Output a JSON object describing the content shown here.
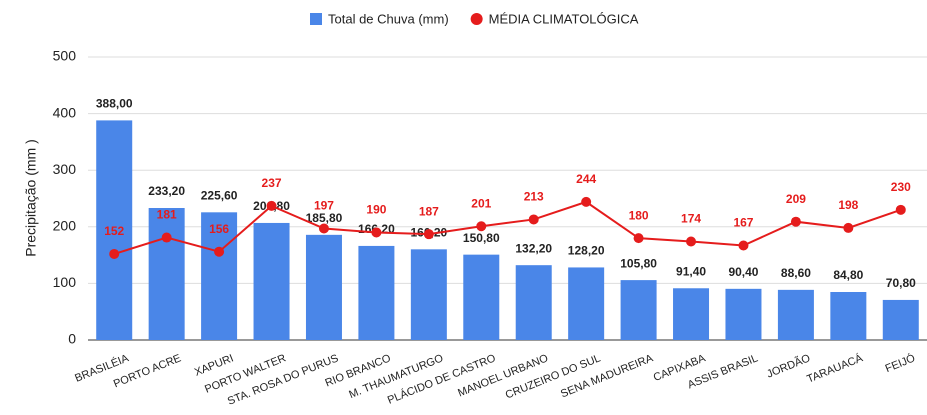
{
  "chart_data": {
    "type": "combo",
    "categories": [
      "BRASILÉIA",
      "PORTO ACRE",
      "XAPURI",
      "PORTO WALTER",
      "STA. ROSA DO PURUS",
      "RIO BRANCO",
      "M. THAUMATURGO",
      "PLÁCIDO DE CASTRO",
      "MANOEL URBANO",
      "CRUZEIRO DO SUL",
      "SENA MADUREIRA",
      "CAPIXABA",
      "ASSIS BRASIL",
      "JORDÃO",
      "TARAUACÁ",
      "FEIJÓ"
    ],
    "y_label": "Precipitação (mm )",
    "series": [
      {
        "name": "Total de Chuva (mm)",
        "type": "bar",
        "color": "#4a86e8",
        "values": [
          388,
          233.2,
          225.6,
          206.8,
          185.8,
          166.2,
          160.2,
          150.8,
          132.2,
          128.2,
          105.8,
          91.4,
          90.4,
          88.6,
          84.8,
          70.8
        ],
        "value_labels": [
          "388,00",
          "233,20",
          "225,60",
          "206,80",
          "185,80",
          "166,20",
          "160,20",
          "150,80",
          "132,20",
          "128,20",
          "105,80",
          "91,40",
          "90,40",
          "88,60",
          "84,80",
          "70,80"
        ]
      },
      {
        "name": "MÉDIA CLIMATOLÓGICA",
        "type": "line",
        "color": "#e51c1c",
        "values": [
          152,
          181,
          156,
          237,
          197,
          190,
          187,
          201,
          213,
          244,
          180,
          174,
          167,
          209,
          198,
          230
        ]
      }
    ],
    "ylim": [
      0,
      500
    ],
    "yticks": [
      0,
      100,
      200,
      300,
      400,
      500
    ],
    "grid": true,
    "legend": "top"
  }
}
